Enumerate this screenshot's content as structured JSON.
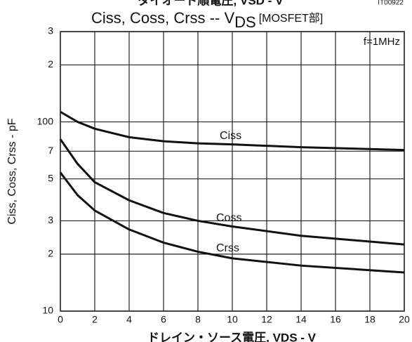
{
  "chart_data": {
    "type": "line",
    "header": "ダイオード順電圧, VSD - V",
    "code": "IT00922",
    "title": "Ciss, Coss, Crss -- V",
    "title_sub": "DS",
    "title_suffix": "[MOSFET部]",
    "y_label": "Ciss, Coss, Crss - pF",
    "x_label": "ドレイン・ソース電圧, VDS - V",
    "annotation": "f=1MHz",
    "x": [
      0,
      1,
      2,
      4,
      6,
      8,
      10,
      14,
      20
    ],
    "series": [
      {
        "name": "Ciss",
        "color": "#111111",
        "values": [
          113,
          100,
          92,
          83,
          79,
          77,
          76,
          73.5,
          71
        ]
      },
      {
        "name": "Coss",
        "color": "#111111",
        "values": [
          81,
          60,
          48,
          38.5,
          33,
          30,
          28,
          25,
          22.5
        ]
      },
      {
        "name": "Crss",
        "color": "#111111",
        "values": [
          54,
          41,
          34,
          27,
          23,
          20.6,
          19,
          17.4,
          16
        ]
      }
    ],
    "xlim": [
      0,
      20
    ],
    "xticks": [
      0,
      2,
      4,
      6,
      8,
      10,
      12,
      14,
      16,
      18,
      20
    ],
    "ylim": [
      10,
      300
    ],
    "yticks": [
      10,
      {
        "value": 20,
        "label": "2"
      },
      {
        "value": 30,
        "label": "3"
      },
      {
        "value": 50,
        "label": "5"
      },
      {
        "value": 70,
        "label": "7"
      },
      100,
      {
        "value": 200,
        "label": "2"
      },
      {
        "value": 300,
        "label": "3"
      }
    ],
    "log_y": true,
    "grid": true
  }
}
